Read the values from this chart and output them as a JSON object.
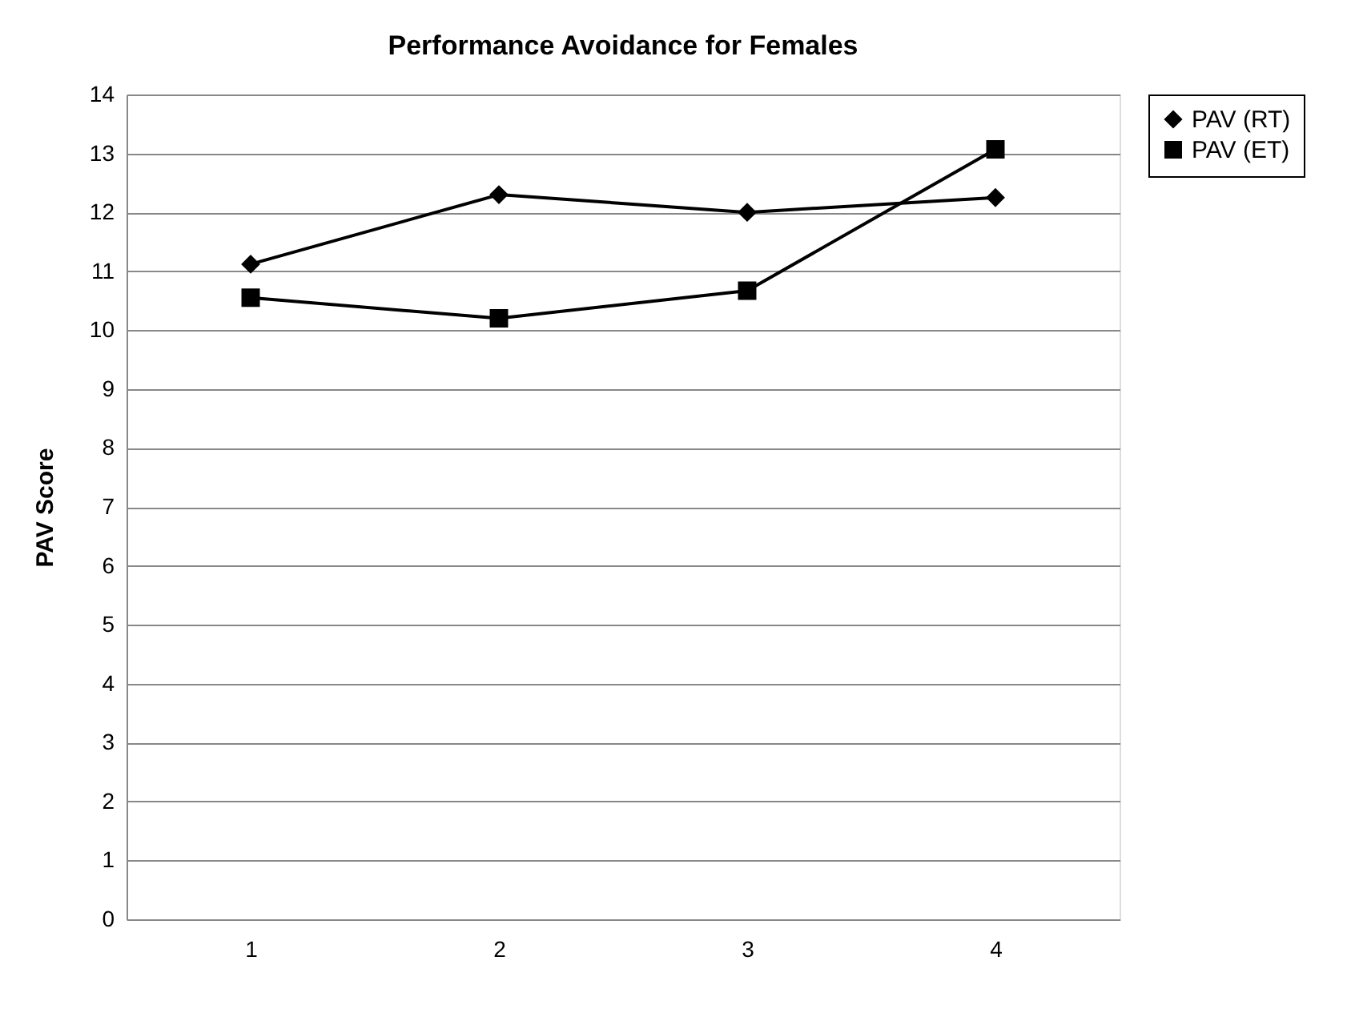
{
  "chart_data": {
    "type": "line",
    "title": "Performance Avoidance for Females",
    "ylabel": "PAV  Score",
    "categories": [
      "1",
      "2",
      "3",
      "4"
    ],
    "series": [
      {
        "name": "PAV (RT)",
        "color": "#000000",
        "marker": "diamond",
        "values": [
          11.12,
          12.3,
          12.0,
          12.25
        ]
      },
      {
        "name": "PAV (ET)",
        "color": "#000000",
        "marker": "square",
        "values": [
          10.55,
          10.2,
          10.67,
          13.07
        ]
      }
    ],
    "ylim": [
      0,
      14
    ],
    "yticks": [
      0,
      1,
      2,
      3,
      4,
      5,
      6,
      7,
      8,
      9,
      10,
      11,
      12,
      13,
      14
    ],
    "grid": "y",
    "legend": "right"
  }
}
